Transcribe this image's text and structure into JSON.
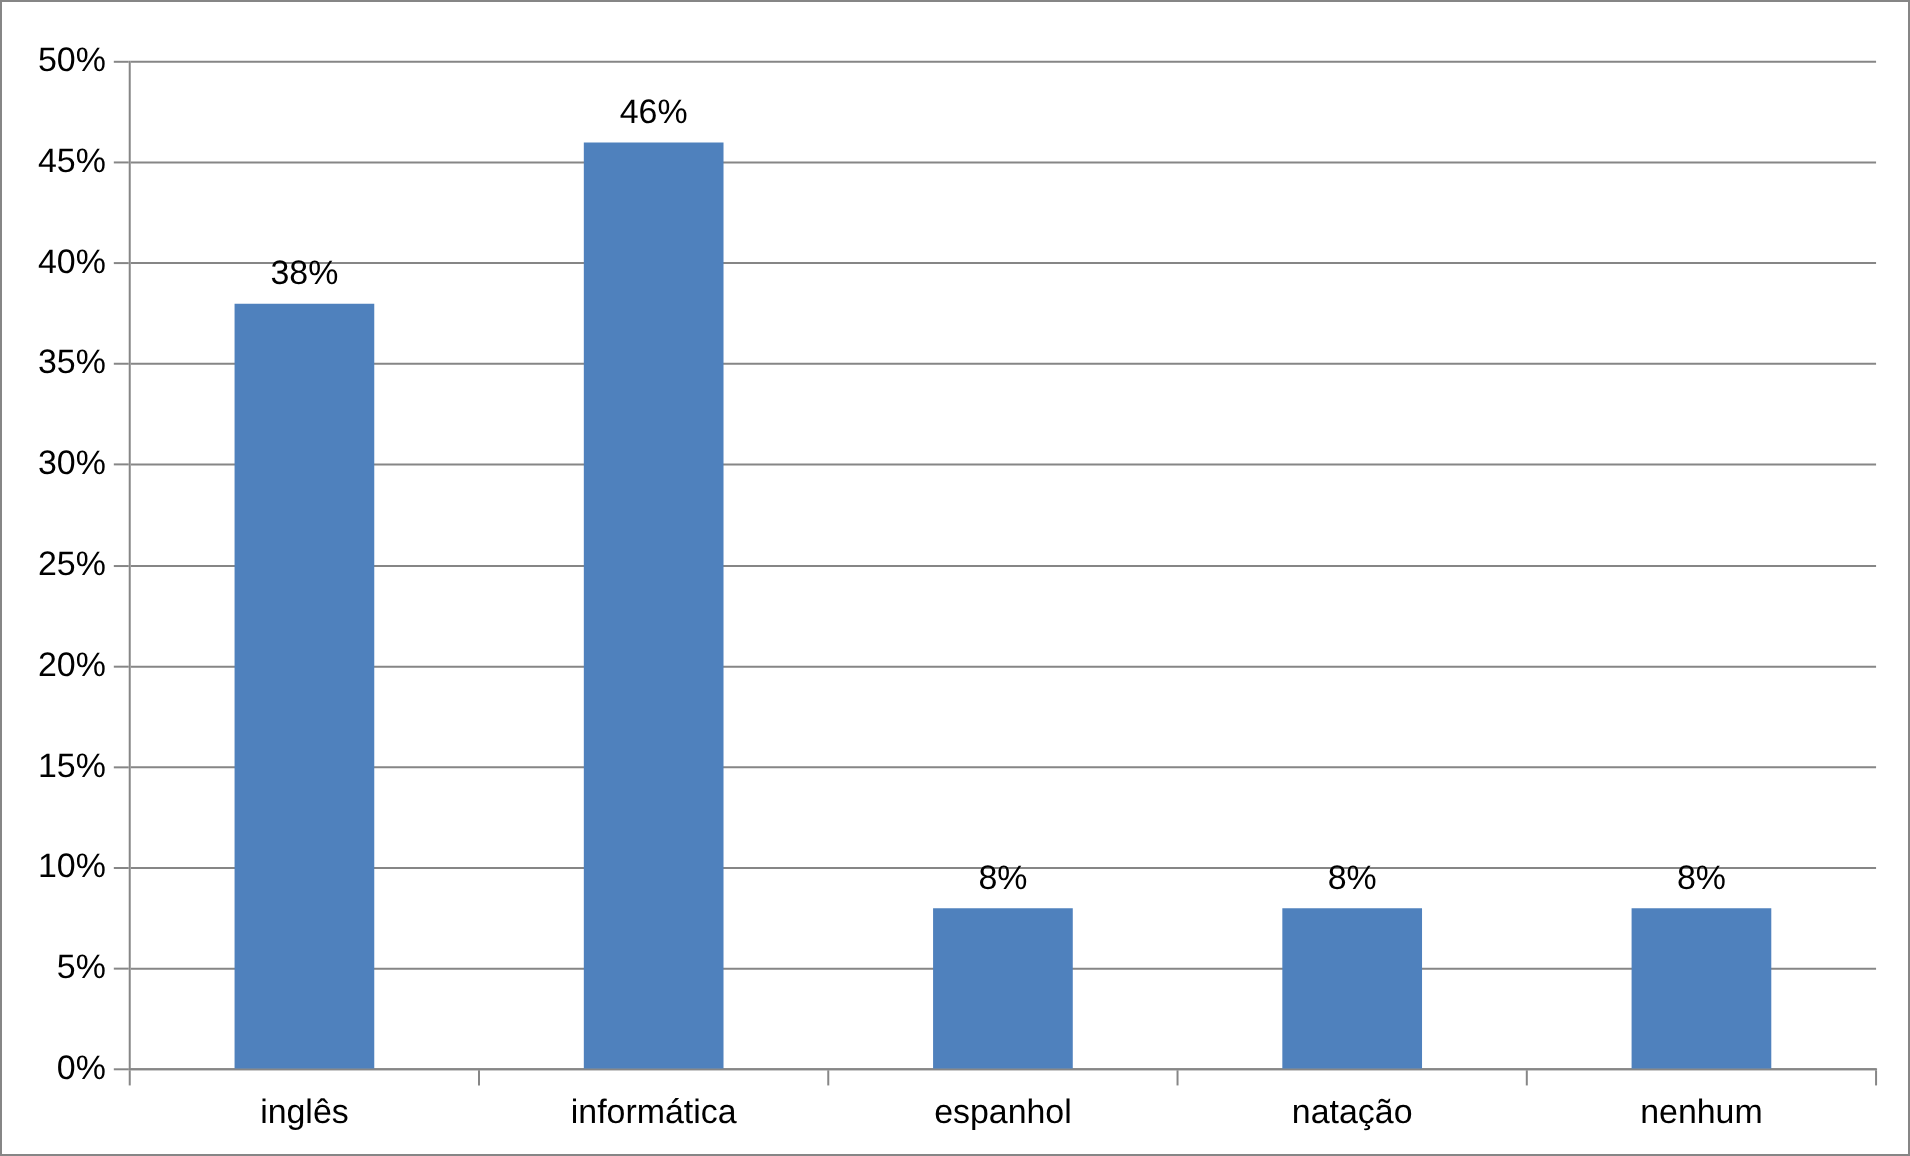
{
  "chart_data": {
    "type": "bar",
    "categories": [
      "inglês",
      "informática",
      "espanhol",
      "natação",
      "nenhum"
    ],
    "values": [
      38,
      46,
      8,
      8,
      8
    ],
    "value_labels": [
      "38%",
      "46%",
      "8%",
      "8%",
      "8%"
    ],
    "color": "#4f81bd",
    "ylim": [
      0,
      50
    ],
    "yticks": [
      {
        "value": 0,
        "label": "0%"
      },
      {
        "value": 5,
        "label": "5%"
      },
      {
        "value": 10,
        "label": "10%"
      },
      {
        "value": 15,
        "label": "15%"
      },
      {
        "value": 20,
        "label": "20%"
      },
      {
        "value": 25,
        "label": "25%"
      },
      {
        "value": 30,
        "label": "30%"
      },
      {
        "value": 35,
        "label": "35%"
      },
      {
        "value": 40,
        "label": "40%"
      },
      {
        "value": 45,
        "label": "45%"
      },
      {
        "value": 50,
        "label": "50%"
      }
    ],
    "grid": "y",
    "legend": false
  }
}
